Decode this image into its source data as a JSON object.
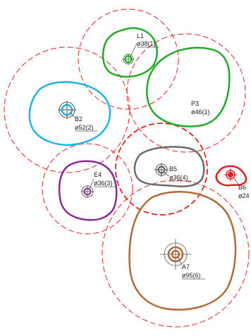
{
  "diagram": {
    "colors": {
      "zone_circle": "#e0201e",
      "marker": "#444444",
      "background": "#ffffff"
    },
    "features": [
      {
        "id": "L1",
        "name": "L1",
        "spec": "ø38(1)",
        "outline_color": "#22aa2a",
        "marker_color": "#2a9a2a"
      },
      {
        "id": "P3",
        "name": "P3",
        "spec": "ø46(1)",
        "outline_color": "#22aa2a"
      },
      {
        "id": "B2",
        "name": "B2",
        "spec": "ø52(2)",
        "outline_color": "#1fb4e6",
        "marker_color": "#1fb4e6"
      },
      {
        "id": "E4",
        "name": "E4",
        "spec": "ø36(3)",
        "outline_color": "#8a2896",
        "marker_color": "#8a2896"
      },
      {
        "id": "B5",
        "name": "B5",
        "spec": "ø36(4)",
        "outline_color": "#6a6a6a",
        "marker_color": "#555555"
      },
      {
        "id": "B6",
        "name": "B6",
        "spec": "ø24",
        "outline_color": "#e0201e",
        "marker_color": "#e0201e"
      },
      {
        "id": "A7",
        "name": "A7",
        "spec": "ø95(6)",
        "outline_color": "#b06a38",
        "marker_color": "#b06a38"
      }
    ]
  }
}
